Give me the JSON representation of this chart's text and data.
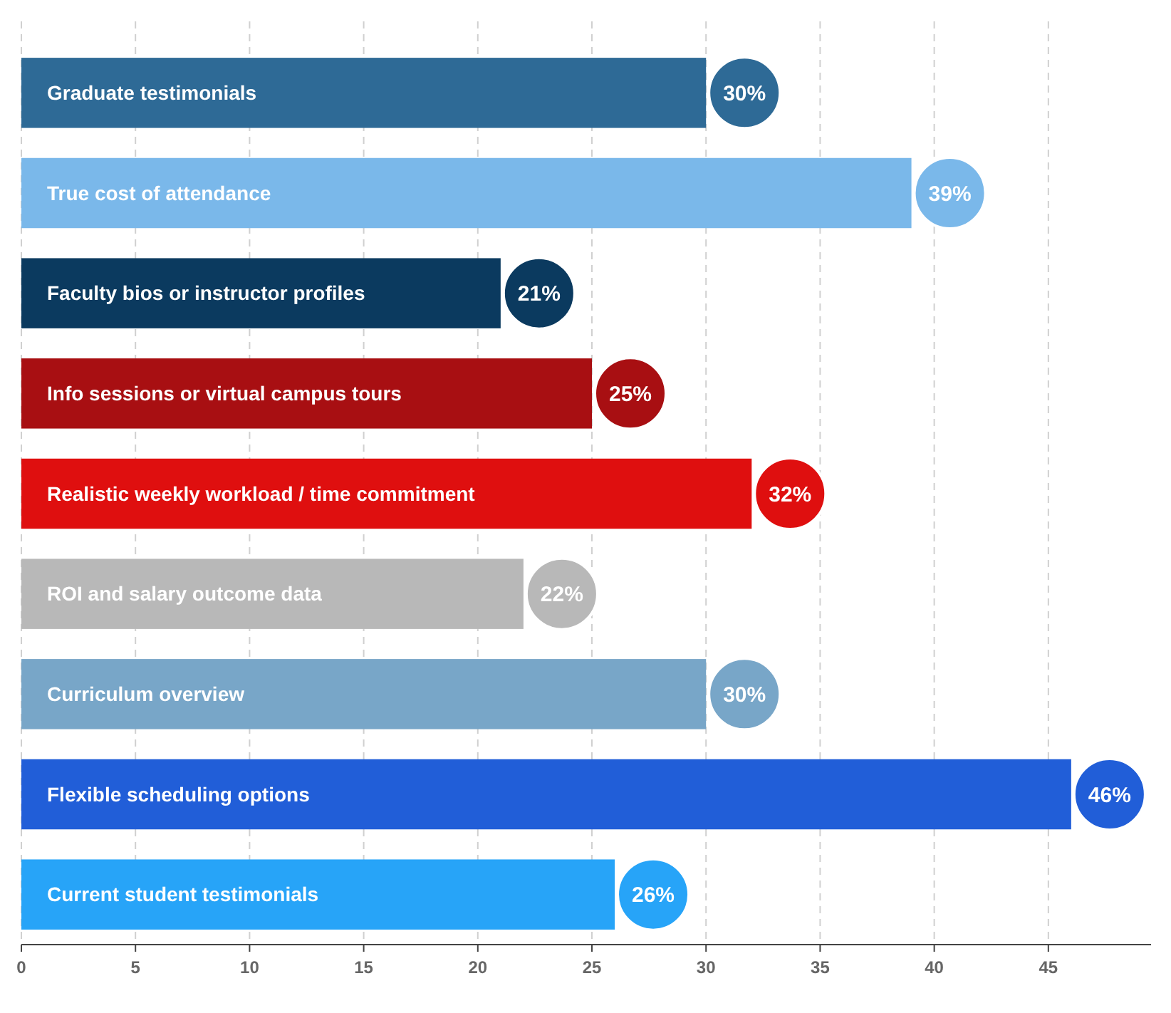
{
  "chart_data": {
    "type": "bar",
    "orientation": "horizontal",
    "categories": [
      "Graduate testimonials",
      "True cost of attendance",
      "Faculty bios or instructor profiles",
      "Info sessions or virtual campus tours",
      "Realistic weekly workload / time commitment",
      "ROI and salary outcome data",
      "Curriculum overview",
      "Flexible scheduling options",
      "Current student testimonials"
    ],
    "values": [
      30,
      39,
      21,
      25,
      32,
      22,
      30,
      46,
      26
    ],
    "value_labels": [
      "30%",
      "39%",
      "21%",
      "25%",
      "32%",
      "22%",
      "30%",
      "46%",
      "26%"
    ],
    "colors": [
      "#2e6a96",
      "#7ab8ea",
      "#0b3a5f",
      "#a80f12",
      "#df0f0f",
      "#b8b8b8",
      "#78a6c8",
      "#215ed8",
      "#27a4f8"
    ],
    "xlim": [
      0,
      49.5
    ],
    "xticks": [
      0,
      5,
      10,
      15,
      20,
      25,
      30,
      35,
      40,
      45
    ],
    "grid": "x"
  }
}
